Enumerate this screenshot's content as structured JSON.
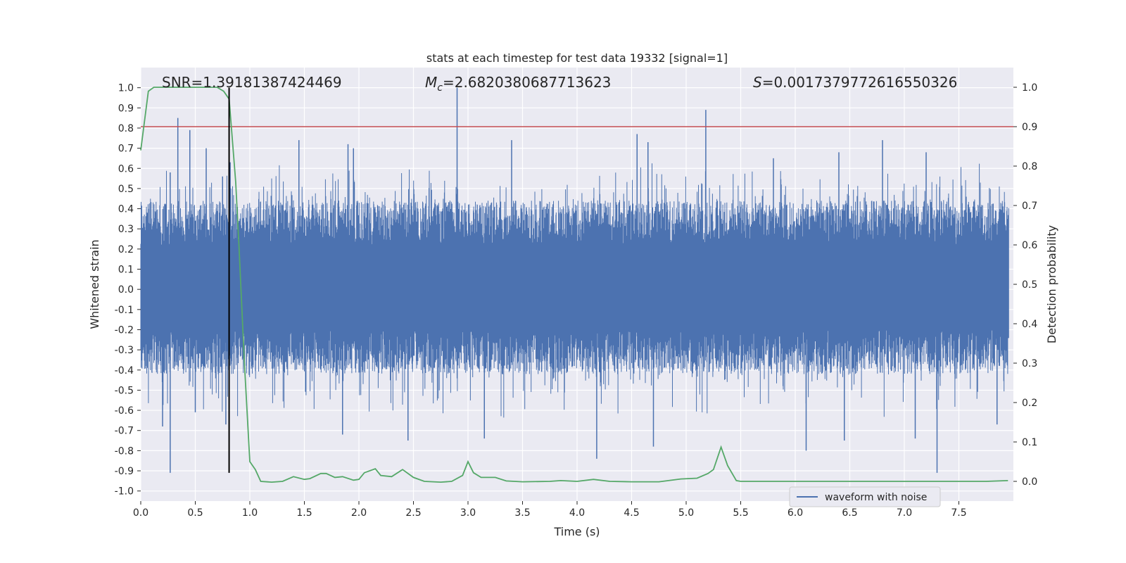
{
  "chart_data": {
    "type": "line",
    "title": "stats at each timestep for test data 19332 [signal=1]",
    "xlabel": "Time (s)",
    "ylabel": "Whitened strain",
    "y2label": "Detection probability",
    "xlim": [
      0.0,
      8.0
    ],
    "ylim": [
      -1.05,
      1.1
    ],
    "y2lim": [
      -0.05,
      1.05
    ],
    "x_ticks": [
      0.0,
      0.5,
      1.0,
      1.5,
      2.0,
      2.5,
      3.0,
      3.5,
      4.0,
      4.5,
      5.0,
      5.5,
      6.0,
      6.5,
      7.0,
      7.5
    ],
    "x_tick_labels": [
      "0.0",
      "0.5",
      "1.0",
      "1.5",
      "2.0",
      "2.5",
      "3.0",
      "3.5",
      "4.0",
      "4.5",
      "5.0",
      "5.5",
      "6.0",
      "6.5",
      "7.0",
      "7.5"
    ],
    "y_ticks": [
      1.0,
      0.9,
      0.8,
      0.7,
      0.6,
      0.5,
      0.4,
      0.3,
      0.2,
      0.1,
      0.0,
      -0.1,
      -0.2,
      -0.3,
      -0.4,
      -0.5,
      -0.6,
      -0.7,
      -0.8,
      -0.9,
      -1.0
    ],
    "y_tick_labels": [
      "1.0",
      "0.9",
      "0.8",
      "0.7",
      "0.6",
      "0.5",
      "0.4",
      "0.3",
      "0.2",
      "0.1",
      "0.0",
      "-0.1",
      "-0.2",
      "-0.3",
      "-0.4",
      "-0.5",
      "-0.6",
      "-0.7",
      "-0.8",
      "-0.9",
      "-1.0"
    ],
    "y2_ticks": [
      1.0,
      0.9,
      0.8,
      0.7,
      0.6,
      0.5,
      0.4,
      0.3,
      0.2,
      0.1,
      0.0
    ],
    "y2_tick_labels": [
      "1.0",
      "0.9",
      "0.8",
      "0.7",
      "0.6",
      "0.5",
      "0.4",
      "0.3",
      "0.2",
      "0.1",
      "0.0"
    ],
    "grid": true,
    "annotations": {
      "snr": "SNR=1.39181387424469",
      "mc_symbol": "M",
      "mc_sub": "c",
      "mc_value": "=2.6820380687713623",
      "s_symbol": "S",
      "s_value": "=0.0017379772616550326"
    },
    "threshold_y2": 0.9,
    "vline_x": 0.81,
    "vline_ymin": -0.91,
    "vline_ymax": 1.0,
    "spike_peaks_up": [
      [
        0.27,
        0.58
      ],
      [
        0.34,
        0.85
      ],
      [
        0.45,
        0.79
      ],
      [
        0.6,
        0.7
      ],
      [
        0.75,
        0.56
      ],
      [
        0.82,
        0.63
      ],
      [
        1.45,
        0.74
      ],
      [
        1.9,
        0.72
      ],
      [
        1.95,
        0.7
      ],
      [
        2.9,
        1.0
      ],
      [
        3.4,
        0.74
      ],
      [
        4.55,
        0.77
      ],
      [
        4.65,
        0.73
      ],
      [
        5.18,
        0.89
      ],
      [
        5.8,
        0.65
      ],
      [
        6.4,
        0.68
      ],
      [
        6.8,
        0.74
      ],
      [
        7.2,
        0.68
      ]
    ],
    "spike_peaks_down": [
      [
        0.27,
        -0.91
      ],
      [
        0.2,
        -0.68
      ],
      [
        0.5,
        -0.61
      ],
      [
        0.78,
        -0.67
      ],
      [
        1.85,
        -0.72
      ],
      [
        2.45,
        -0.75
      ],
      [
        3.15,
        -0.74
      ],
      [
        4.18,
        -0.84
      ],
      [
        4.7,
        -0.78
      ],
      [
        6.1,
        -0.8
      ],
      [
        6.45,
        -0.75
      ],
      [
        7.3,
        -0.91
      ],
      [
        7.1,
        -0.74
      ],
      [
        7.85,
        -0.67
      ]
    ],
    "series": [
      {
        "name": "waveform with noise",
        "color": "#4c72b0",
        "axis": "left",
        "description": "dense noisy whitened strain samples"
      },
      {
        "axis": "right",
        "color": "#55a868",
        "x": [
          0.0,
          0.07,
          0.12,
          0.25,
          0.5,
          0.7,
          0.76,
          0.81,
          0.87,
          0.9,
          0.95,
          1.0,
          1.05,
          1.1,
          1.2,
          1.3,
          1.4,
          1.5,
          1.55,
          1.65,
          1.7,
          1.78,
          1.85,
          1.95,
          2.0,
          2.05,
          2.15,
          2.2,
          2.3,
          2.4,
          2.5,
          2.6,
          2.75,
          2.85,
          2.95,
          3.0,
          3.05,
          3.12,
          3.25,
          3.35,
          3.5,
          3.75,
          3.85,
          4.0,
          4.15,
          4.3,
          4.5,
          4.75,
          4.95,
          5.1,
          5.2,
          5.25,
          5.32,
          5.38,
          5.46,
          5.5,
          5.75,
          6.25,
          6.75,
          7.25,
          7.75,
          7.95
        ],
        "y": [
          0.84,
          0.99,
          1.0,
          1.0,
          1.0,
          1.0,
          0.99,
          0.97,
          0.76,
          0.6,
          0.3,
          0.05,
          0.03,
          0.0,
          -0.002,
          0.0,
          0.012,
          0.005,
          0.007,
          0.02,
          0.02,
          0.01,
          0.012,
          0.003,
          0.005,
          0.022,
          0.032,
          0.015,
          0.012,
          0.03,
          0.01,
          0.0,
          -0.002,
          0.0,
          0.015,
          0.05,
          0.022,
          0.01,
          0.01,
          0.001,
          -0.001,
          0.0,
          0.002,
          0.0,
          0.005,
          0.0,
          -0.001,
          -0.001,
          0.006,
          0.008,
          0.02,
          0.03,
          0.087,
          0.04,
          0.002,
          0.0,
          0.0,
          0.0,
          0.0,
          0.0,
          0.0,
          0.002
        ]
      }
    ],
    "legend": {
      "label": "waveform with noise",
      "position": "lower-right"
    },
    "colors": {
      "plot_bg": "#eaeaf2",
      "grid": "#ffffff",
      "threshold": "#c44e52",
      "vline": "#000000",
      "waveform": "#4c72b0",
      "probability": "#55a868"
    }
  }
}
